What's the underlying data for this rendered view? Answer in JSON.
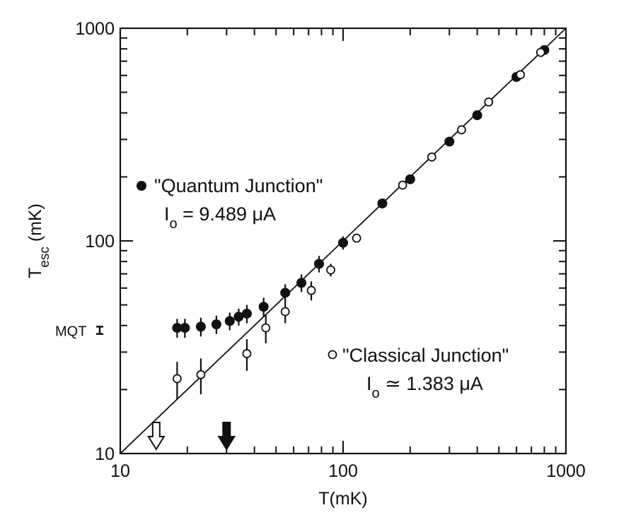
{
  "chart_data": {
    "type": "scatter",
    "xscale": "log",
    "yscale": "log",
    "xlim": [
      10,
      1000
    ],
    "ylim": [
      10,
      1000
    ],
    "xlabel": "T(mK)",
    "ylabel_main": "T",
    "ylabel_sub": "esc",
    "ylabel_rest": " (mK)",
    "xticks": [
      "10",
      "100",
      "1000"
    ],
    "yticks": [
      "10",
      "100",
      "1000"
    ],
    "diagonal_line": {
      "from": [
        10,
        10
      ],
      "to": [
        1000,
        1000
      ]
    },
    "annotations": {
      "mqt_label": "MQT",
      "mqt_level": 38,
      "mqt_halfwidth": 1.5,
      "quantum_title": "\"Quantum Junction\"",
      "quantum_current_prefix": "I",
      "quantum_current_sub": "o",
      "quantum_current_value": " = 9.489 μA",
      "classical_title": "\"Classical Junction\"",
      "classical_current_prefix": "I",
      "classical_current_sub": "o",
      "classical_current_value": " ≃ 1.383 μA"
    },
    "arrows": [
      {
        "x": 14.5,
        "style": "open"
      },
      {
        "x": 30,
        "style": "filled"
      }
    ],
    "series": [
      {
        "name": "\"Quantum Junction\"",
        "marker": "filled-circle",
        "points": [
          {
            "x": 18,
            "y": 39,
            "err": 4
          },
          {
            "x": 19.5,
            "y": 39,
            "err": 4
          },
          {
            "x": 23,
            "y": 39.5,
            "err": 4
          },
          {
            "x": 27,
            "y": 40.5,
            "err": 4
          },
          {
            "x": 31,
            "y": 42,
            "err": 4
          },
          {
            "x": 34,
            "y": 44,
            "err": 4
          },
          {
            "x": 37,
            "y": 45.5,
            "err": 4.5
          },
          {
            "x": 44,
            "y": 49,
            "err": 5
          },
          {
            "x": 55,
            "y": 57,
            "err": 5.5
          },
          {
            "x": 65,
            "y": 63.5,
            "err": 6
          },
          {
            "x": 78,
            "y": 78,
            "err": 7
          },
          {
            "x": 100,
            "y": 98,
            "err": 7
          },
          {
            "x": 150,
            "y": 150,
            "err": 0
          },
          {
            "x": 200,
            "y": 195,
            "err": 0
          },
          {
            "x": 300,
            "y": 293,
            "err": 0
          },
          {
            "x": 400,
            "y": 390,
            "err": 0
          },
          {
            "x": 600,
            "y": 590,
            "err": 0
          },
          {
            "x": 800,
            "y": 790,
            "err": 0
          }
        ]
      },
      {
        "name": "\"Classical Junction\"",
        "marker": "open-circle",
        "points": [
          {
            "x": 18,
            "y": 22.5,
            "err": 4.5
          },
          {
            "x": 23,
            "y": 23.5,
            "err": 4.5
          },
          {
            "x": 37,
            "y": 29.5,
            "err": 5
          },
          {
            "x": 45,
            "y": 39,
            "err": 6
          },
          {
            "x": 55,
            "y": 46.5,
            "err": 5.5
          },
          {
            "x": 72,
            "y": 58.5,
            "err": 6
          },
          {
            "x": 88,
            "y": 73,
            "err": 5
          },
          {
            "x": 115,
            "y": 103,
            "err": 4
          },
          {
            "x": 185,
            "y": 183,
            "err": 0
          },
          {
            "x": 250,
            "y": 248,
            "err": 0
          },
          {
            "x": 340,
            "y": 333,
            "err": 0
          },
          {
            "x": 450,
            "y": 450,
            "err": 0
          },
          {
            "x": 625,
            "y": 605,
            "err": 0
          },
          {
            "x": 770,
            "y": 770,
            "err": 0
          }
        ]
      }
    ]
  }
}
